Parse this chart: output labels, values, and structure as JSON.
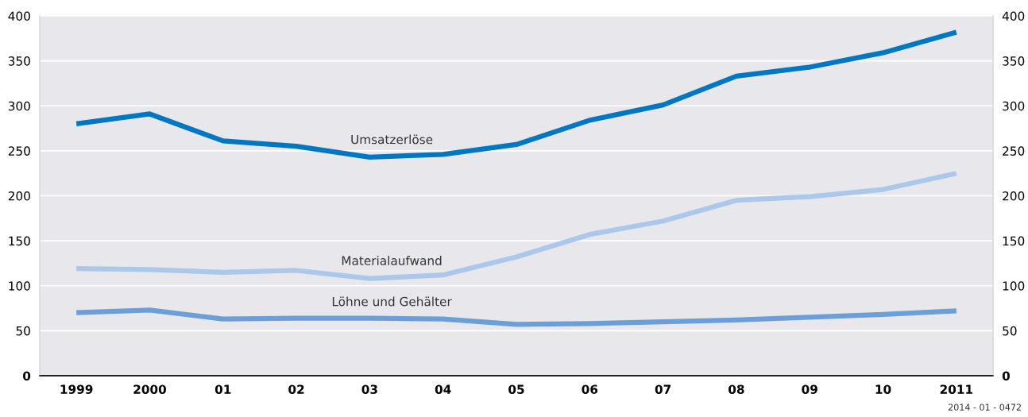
{
  "chart_data": {
    "type": "line",
    "categories": [
      "1999",
      "2000",
      "01",
      "02",
      "03",
      "04",
      "05",
      "06",
      "07",
      "08",
      "09",
      "10",
      "2011"
    ],
    "series": [
      {
        "name": "Umsatzerlöse",
        "color": "#0077c0",
        "values": [
          280,
          291,
          261,
          255,
          243,
          246,
          257,
          284,
          301,
          333,
          343,
          359,
          382
        ]
      },
      {
        "name": "Materialaufwand",
        "color": "#abc8eb",
        "values": [
          119,
          118,
          115,
          117,
          108,
          112,
          132,
          157,
          172,
          195,
          199,
          207,
          225
        ]
      },
      {
        "name": "Löhne und Gehälter",
        "color": "#6c9fd8",
        "values": [
          70,
          73,
          63,
          64,
          64,
          63,
          57,
          58,
          60,
          62,
          65,
          68,
          72
        ]
      }
    ],
    "ylim": [
      0,
      400
    ],
    "yticks": [
      0,
      50,
      100,
      150,
      200,
      250,
      300,
      350,
      400
    ],
    "y2lim": [
      0,
      400
    ],
    "y2ticks": [
      0,
      50,
      100,
      150,
      200,
      250,
      300,
      350,
      400
    ],
    "grid": "y",
    "marker": "none",
    "line_style": "solid",
    "annotations": [
      "2014 - 01 - 0472"
    ]
  }
}
